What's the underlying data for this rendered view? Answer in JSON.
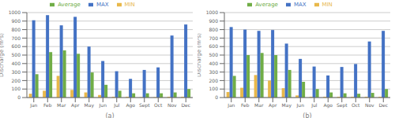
{
  "chart_data": [
    {
      "type": "bar",
      "x_label": "(a)",
      "y_label": "Discharge (m³s)",
      "categories": [
        "Jan",
        "Feb",
        "Mar",
        "Apr",
        "May",
        "Jun",
        "Jul",
        "Ago",
        "Sept",
        "Oct",
        "Nov",
        "Dec"
      ],
      "series": [
        {
          "name": "MIN",
          "color": "#E8B84B",
          "values": [
            45,
            80,
            255,
            90,
            60,
            30,
            10,
            10,
            5,
            5,
            10,
            10
          ]
        },
        {
          "name": "MAX",
          "color": "#4472C4",
          "values": [
            910,
            970,
            850,
            950,
            600,
            430,
            310,
            220,
            325,
            355,
            730,
            860
          ]
        },
        {
          "name": "Average",
          "color": "#70AD47",
          "values": [
            275,
            535,
            555,
            515,
            295,
            150,
            80,
            50,
            50,
            50,
            60,
            100
          ]
        }
      ],
      "ylim": [
        0,
        1000
      ],
      "yticks": [
        0,
        100,
        200,
        300,
        400,
        500,
        600,
        700,
        800,
        900,
        1000
      ],
      "grid": true,
      "legend": "top"
    },
    {
      "type": "bar",
      "x_label": "(b)",
      "y_label": "Discharge (m³s)",
      "categories": [
        "Jan",
        "Feb",
        "Mar",
        "Apr",
        "May",
        "Jun",
        "Jul",
        "Ago",
        "Sept",
        "Oct",
        "Nov",
        "Dec"
      ],
      "series": [
        {
          "name": "MIN",
          "color": "#E8B84B",
          "values": [
            65,
            115,
            265,
            200,
            110,
            25,
            10,
            10,
            10,
            10,
            10,
            10
          ]
        },
        {
          "name": "MAX",
          "color": "#4472C4",
          "values": [
            830,
            800,
            785,
            795,
            635,
            455,
            365,
            260,
            360,
            395,
            660,
            785
          ]
        },
        {
          "name": "Average",
          "color": "#70AD47",
          "values": [
            255,
            500,
            525,
            500,
            325,
            185,
            100,
            60,
            50,
            45,
            55,
            100
          ]
        }
      ],
      "ylim": [
        0,
        1000
      ],
      "yticks": [
        0,
        100,
        200,
        300,
        400,
        500,
        600,
        700,
        800,
        900,
        1000
      ],
      "grid": true,
      "legend": "top"
    }
  ]
}
